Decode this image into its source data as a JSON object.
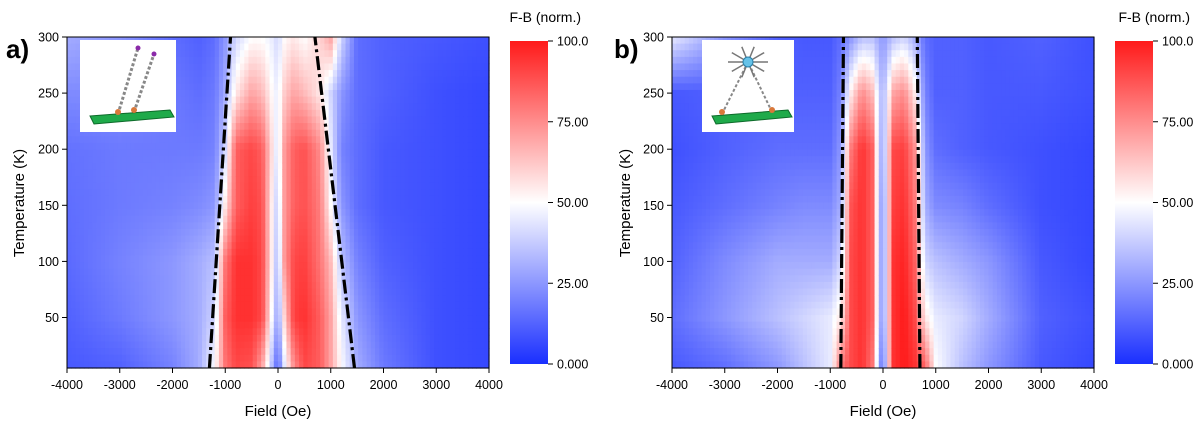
{
  "colors": {
    "low": "#1a2fff",
    "mid": "#ffffff",
    "high": "#ff1a1a",
    "inset_substrate": "#1faa4a"
  },
  "chart_data": [
    {
      "type": "heatmap",
      "panel_label": "a)",
      "xlabel": "Field (Oe)",
      "ylabel": "Temperature (K)",
      "xlim": [
        -4000,
        4000
      ],
      "ylim": [
        5,
        300
      ],
      "x_ticks": [
        -4000,
        -3000,
        -2000,
        -1000,
        0,
        1000,
        2000,
        3000,
        4000
      ],
      "y_ticks": [
        50,
        100,
        150,
        200,
        250,
        300
      ],
      "colorbar": {
        "title": "F-B (norm.)",
        "range": [
          0,
          100
        ],
        "ticks": [
          "0.000",
          "25.00",
          "50.00",
          "75.00",
          "100.0"
        ]
      },
      "guide_lines": [
        {
          "style": "dash-dot",
          "points": [
            [
              -1300,
              5
            ],
            [
              -900,
              300
            ]
          ]
        },
        {
          "style": "dash-dot",
          "points": [
            [
              1450,
              5
            ],
            [
              700,
              300
            ]
          ]
        }
      ],
      "inset_icon": "molecules-on-substrate-icon",
      "data_description_grid": {
        "x": [
          -4000,
          -3000,
          -2000,
          -1500,
          -1200,
          -1000,
          -800,
          -500,
          -300,
          -100,
          0,
          100,
          300,
          500,
          800,
          1000,
          1200,
          1500,
          2000,
          3000,
          4000
        ],
        "y": [
          5,
          50,
          100,
          150,
          200,
          250,
          300
        ],
        "z": [
          [
            10,
            12,
            20,
            30,
            50,
            80,
            90,
            88,
            70,
            30,
            10,
            40,
            75,
            90,
            85,
            70,
            50,
            30,
            18,
            8,
            6
          ],
          [
            12,
            18,
            25,
            30,
            40,
            85,
            95,
            95,
            90,
            45,
            25,
            55,
            92,
            95,
            85,
            70,
            45,
            25,
            15,
            8,
            6
          ],
          [
            14,
            20,
            25,
            30,
            35,
            80,
            95,
            95,
            90,
            50,
            30,
            70,
            90,
            92,
            80,
            65,
            35,
            20,
            12,
            8,
            6
          ],
          [
            15,
            18,
            20,
            22,
            25,
            55,
            85,
            92,
            88,
            50,
            35,
            70,
            85,
            88,
            78,
            50,
            25,
            15,
            10,
            8,
            6
          ],
          [
            16,
            18,
            18,
            18,
            20,
            40,
            85,
            90,
            85,
            55,
            40,
            70,
            85,
            88,
            75,
            45,
            20,
            15,
            10,
            8,
            6
          ],
          [
            22,
            22,
            18,
            15,
            18,
            30,
            55,
            70,
            65,
            50,
            45,
            60,
            70,
            65,
            55,
            40,
            25,
            15,
            12,
            8,
            6
          ],
          [
            30,
            25,
            15,
            12,
            15,
            25,
            40,
            50,
            50,
            45,
            40,
            50,
            55,
            50,
            60,
            70,
            40,
            15,
            12,
            10,
            8
          ]
        ]
      }
    },
    {
      "type": "heatmap",
      "panel_label": "b)",
      "xlabel": "Field (Oe)",
      "ylabel": "Temperature (K)",
      "xlim": [
        -4000,
        4000
      ],
      "ylim": [
        5,
        300
      ],
      "x_ticks": [
        -4000,
        -3000,
        -2000,
        -1000,
        0,
        1000,
        2000,
        3000,
        4000
      ],
      "y_ticks": [
        50,
        100,
        150,
        200,
        250,
        300
      ],
      "colorbar": {
        "title": "F-B (norm.)",
        "range": [
          0,
          100
        ],
        "ticks": [
          "0.000",
          "25.00",
          "50.00",
          "75.00",
          "100.0"
        ]
      },
      "guide_lines": [
        {
          "style": "dash-dot",
          "points": [
            [
              -800,
              5
            ],
            [
              -750,
              300
            ]
          ]
        },
        {
          "style": "dash-dot",
          "points": [
            [
              700,
              5
            ],
            [
              650,
              300
            ]
          ]
        }
      ],
      "inset_icon": "molecular-complex-on-substrate-icon",
      "data_description_grid": {
        "x": [
          -4000,
          -3000,
          -2000,
          -1500,
          -1000,
          -800,
          -600,
          -400,
          -200,
          -100,
          0,
          100,
          200,
          400,
          600,
          800,
          1000,
          1500,
          2000,
          3000,
          4000
        ],
        "y": [
          5,
          50,
          100,
          150,
          200,
          250,
          300
        ],
        "z": [
          [
            10,
            15,
            25,
            35,
            45,
            80,
            90,
            95,
            80,
            40,
            10,
            60,
            95,
            100,
            95,
            85,
            50,
            35,
            25,
            10,
            6
          ],
          [
            15,
            25,
            35,
            40,
            45,
            55,
            90,
            95,
            85,
            45,
            20,
            60,
            95,
            100,
            90,
            55,
            45,
            40,
            30,
            12,
            8
          ],
          [
            12,
            22,
            30,
            30,
            30,
            40,
            90,
            95,
            85,
            45,
            20,
            60,
            95,
            98,
            85,
            40,
            35,
            30,
            25,
            10,
            6
          ],
          [
            10,
            15,
            20,
            22,
            22,
            30,
            88,
            95,
            85,
            45,
            20,
            60,
            92,
            95,
            80,
            30,
            22,
            20,
            15,
            8,
            6
          ],
          [
            8,
            12,
            15,
            15,
            15,
            25,
            80,
            95,
            85,
            45,
            25,
            60,
            90,
            92,
            75,
            25,
            15,
            12,
            10,
            8,
            6
          ],
          [
            10,
            12,
            12,
            12,
            12,
            20,
            55,
            75,
            65,
            45,
            30,
            50,
            70,
            75,
            55,
            20,
            12,
            12,
            10,
            10,
            8
          ],
          [
            45,
            25,
            12,
            10,
            10,
            15,
            25,
            35,
            35,
            30,
            25,
            30,
            35,
            40,
            30,
            15,
            12,
            12,
            10,
            12,
            8
          ]
        ]
      }
    }
  ]
}
